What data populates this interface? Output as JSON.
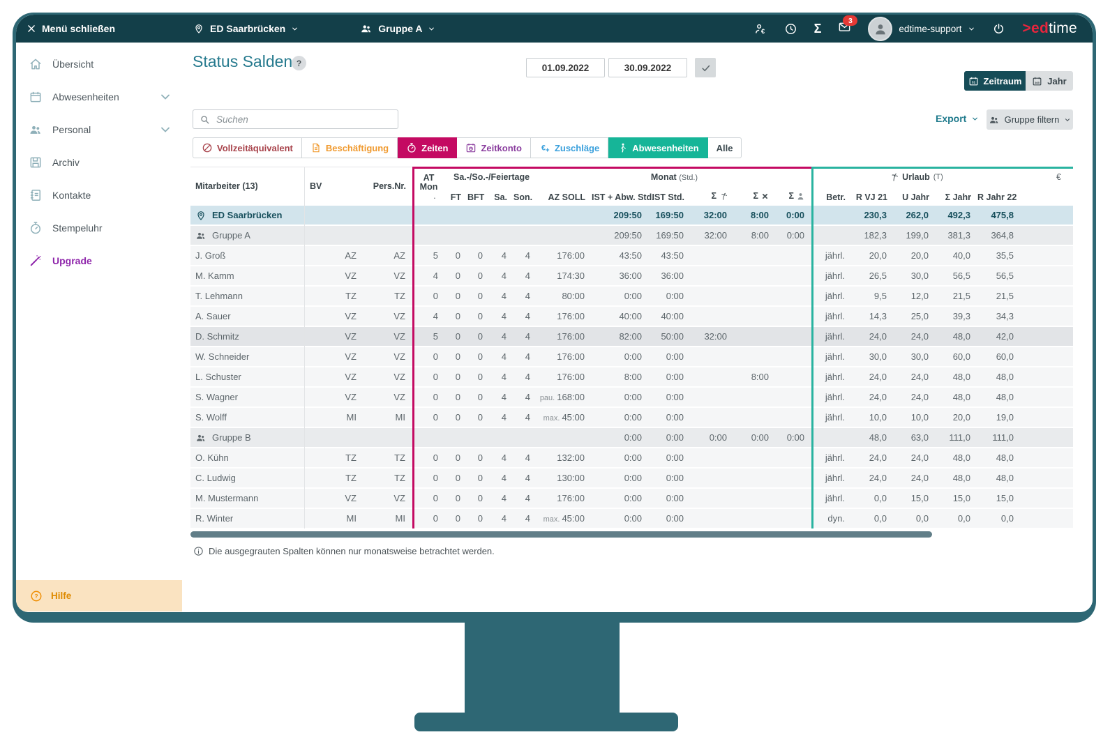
{
  "topbar": {
    "menu_close": "Menü schließen",
    "location": "ED Saarbrücken",
    "group": "Gruppe A",
    "mail_badge": "3",
    "user": "edtime-support",
    "logo_red": ">ed",
    "logo_light": "time"
  },
  "sidebar": {
    "items": [
      {
        "label": "Übersicht",
        "icon": "home-icon"
      },
      {
        "label": "Abwesenheiten",
        "icon": "calendar-icon",
        "chevron": true
      },
      {
        "label": "Personal",
        "icon": "people-icon",
        "chevron": true
      },
      {
        "label": "Archiv",
        "icon": "archive-icon"
      },
      {
        "label": "Kontakte",
        "icon": "contacts-icon"
      },
      {
        "label": "Stempeluhr",
        "icon": "stopwatch-icon"
      },
      {
        "label": "Upgrade",
        "icon": "wand-icon",
        "accent": true
      }
    ],
    "help_label": "Hilfe"
  },
  "header": {
    "title": "Status Salden",
    "help": "?",
    "date_from": "01.09.2022",
    "date_to": "30.09.2022",
    "zeitraum": "Zeitraum",
    "jahr": "Jahr"
  },
  "toolbar": {
    "search_placeholder": "Suchen",
    "export": "Export",
    "group_filter": "Gruppe filtern",
    "filters": [
      {
        "label": "Vollzeitäquivalent",
        "icon": "slash-circle-icon",
        "color": "#a8434b",
        "bg": "#ffffff"
      },
      {
        "label": "Beschäftigung",
        "icon": "document-icon",
        "color": "#f09a2f",
        "bg": "#ffffff"
      },
      {
        "label": "Zeiten",
        "icon": "stopwatch-icon",
        "color": "#ffffff",
        "bg": "#c40a62",
        "active": true
      },
      {
        "label": "Zeitkonto",
        "icon": "calendar-clock-icon",
        "color": "#8a3d9e",
        "bg": "#ffffff"
      },
      {
        "label": "Zuschläge",
        "icon": "euro-plus-icon",
        "color": "#3aa0dc",
        "bg": "#ffffff"
      },
      {
        "label": "Abwesenheiten",
        "icon": "absence-person-icon",
        "color": "#ffffff",
        "bg": "#16b598",
        "active": true
      },
      {
        "label": "Alle",
        "icon": null,
        "color": "#3c4a50",
        "bg": "#ffffff"
      }
    ]
  },
  "table": {
    "header": {
      "mitarbeiter": "Mitarbeiter (13)",
      "bv": "BV",
      "pers": "Pers.Nr.",
      "atmon_l1": "AT",
      "atmon_l2": "Mon",
      "atmon_dot": "·",
      "feiertage": "Sa.-/So.-/Feiertage",
      "ft": "FT",
      "bft": "BFT",
      "sa": "Sa.",
      "son": "Son.",
      "monat": "Monat",
      "monat_unit": "(Std.)",
      "az": "AZ SOLL",
      "ia": "IST + Abw. Std.",
      "ist": "IST Std.",
      "sigma": "Σ",
      "urlaub": "Urlaub",
      "urlaub_unit": "(T)",
      "betr": "Betr.",
      "c1": "R VJ 21",
      "c2": "U Jahr",
      "c3": "Σ Jahr",
      "c4": "R Jahr 22",
      "euro": "€"
    },
    "rows": [
      {
        "type": "location",
        "icon": "pin-icon",
        "name": "ED Saarbrücken",
        "ia": "209:50",
        "ist": "169:50",
        "s1": "32:00",
        "s2": "8:00",
        "s3": "0:00",
        "c1": "230,3",
        "c2": "262,0",
        "c3": "492,3",
        "c4": "475,8"
      },
      {
        "type": "group",
        "icon": "group-icon",
        "name": "Gruppe A",
        "ia": "209:50",
        "ist": "169:50",
        "s1": "32:00",
        "s2": "8:00",
        "s3": "0:00",
        "c1": "182,3",
        "c2": "199,0",
        "c3": "381,3",
        "c4": "364,8"
      },
      {
        "type": "employee",
        "name": "J. Groß",
        "bv": "AZ",
        "atmon": "5",
        "ft": "0",
        "bft": "0",
        "sa": "4",
        "son": "4",
        "az": "176:00",
        "ia": "43:50",
        "ist": "43:50",
        "betr": "jährl.",
        "c1": "20,0",
        "c2": "20,0",
        "c3": "40,0",
        "c4": "35,5"
      },
      {
        "type": "employee",
        "name": "M. Kamm",
        "bv": "VZ",
        "atmon": "4",
        "ft": "0",
        "bft": "0",
        "sa": "4",
        "son": "4",
        "az": "174:30",
        "ia": "36:00",
        "ist": "36:00",
        "betr": "jährl.",
        "c1": "26,5",
        "c2": "30,0",
        "c3": "56,5",
        "c4": "56,5"
      },
      {
        "type": "employee",
        "name": "T. Lehmann",
        "bv": "TZ",
        "atmon": "0",
        "ft": "0",
        "bft": "0",
        "sa": "4",
        "son": "4",
        "az": "80:00",
        "ia": "0:00",
        "ist": "0:00",
        "betr": "jährl.",
        "c1": "9,5",
        "c2": "12,0",
        "c3": "21,5",
        "c4": "21,5"
      },
      {
        "type": "employee",
        "name": "A. Sauer",
        "bv": "VZ",
        "atmon": "4",
        "ft": "0",
        "bft": "0",
        "sa": "4",
        "son": "4",
        "az": "176:00",
        "ia": "40:00",
        "ist": "40:00",
        "betr": "jährl.",
        "c1": "14,3",
        "c2": "25,0",
        "c3": "39,3",
        "c4": "34,3"
      },
      {
        "type": "employee",
        "selected": true,
        "name": "D. Schmitz",
        "bv": "VZ",
        "atmon": "5",
        "ft": "0",
        "bft": "0",
        "sa": "4",
        "son": "4",
        "az": "176:00",
        "ia": "82:00",
        "ist": "50:00",
        "s1": "32:00",
        "betr": "jährl.",
        "c1": "24,0",
        "c2": "24,0",
        "c3": "48,0",
        "c4": "42,0"
      },
      {
        "type": "employee",
        "name": "W. Schneider",
        "bv": "VZ",
        "atmon": "0",
        "ft": "0",
        "bft": "0",
        "sa": "4",
        "son": "4",
        "az": "176:00",
        "ia": "0:00",
        "ist": "0:00",
        "betr": "jährl.",
        "c1": "30,0",
        "c2": "30,0",
        "c3": "60,0",
        "c4": "60,0"
      },
      {
        "type": "employee",
        "name": "L. Schuster",
        "bv": "VZ",
        "atmon": "0",
        "ft": "0",
        "bft": "0",
        "sa": "4",
        "son": "4",
        "az": "176:00",
        "ia": "8:00",
        "ist": "0:00",
        "s2": "8:00",
        "betr": "jährl.",
        "c1": "24,0",
        "c2": "24,0",
        "c3": "48,0",
        "c4": "48,0"
      },
      {
        "type": "employee",
        "name": "S. Wagner",
        "bv": "VZ",
        "atmon": "0",
        "ft": "0",
        "bft": "0",
        "sa": "4",
        "son": "4",
        "azp": "pau.",
        "az": "168:00",
        "ia": "0:00",
        "ist": "0:00",
        "betr": "jährl.",
        "c1": "24,0",
        "c2": "24,0",
        "c3": "48,0",
        "c4": "48,0"
      },
      {
        "type": "employee",
        "name": "S. Wolff",
        "bv": "MI",
        "atmon": "0",
        "ft": "0",
        "bft": "0",
        "sa": "4",
        "son": "4",
        "azp": "max.",
        "az": "45:00",
        "ia": "0:00",
        "ist": "0:00",
        "betr": "jährl.",
        "c1": "10,0",
        "c2": "10,0",
        "c3": "20,0",
        "c4": "19,0"
      },
      {
        "type": "group",
        "icon": "group-icon",
        "name": "Gruppe B",
        "ia": "0:00",
        "ist": "0:00",
        "s1": "0:00",
        "s2": "0:00",
        "s3": "0:00",
        "c1": "48,0",
        "c2": "63,0",
        "c3": "111,0",
        "c4": "111,0"
      },
      {
        "type": "employee",
        "name": "O. Kühn",
        "bv": "TZ",
        "atmon": "0",
        "ft": "0",
        "bft": "0",
        "sa": "4",
        "son": "4",
        "az": "132:00",
        "ia": "0:00",
        "ist": "0:00",
        "betr": "jährl.",
        "c1": "24,0",
        "c2": "24,0",
        "c3": "48,0",
        "c4": "48,0"
      },
      {
        "type": "employee",
        "name": "C. Ludwig",
        "bv": "TZ",
        "atmon": "0",
        "ft": "0",
        "bft": "0",
        "sa": "4",
        "son": "4",
        "az": "130:00",
        "ia": "0:00",
        "ist": "0:00",
        "betr": "jährl.",
        "c1": "24,0",
        "c2": "24,0",
        "c3": "48,0",
        "c4": "48,0"
      },
      {
        "type": "employee",
        "name": "M. Mustermann",
        "bv": "VZ",
        "atmon": "0",
        "ft": "0",
        "bft": "0",
        "sa": "4",
        "son": "4",
        "az": "176:00",
        "ia": "0:00",
        "ist": "0:00",
        "betr": "jährl.",
        "c1": "0,0",
        "c2": "15,0",
        "c3": "15,0",
        "c4": "15,0"
      },
      {
        "type": "employee",
        "name": "R. Winter",
        "bv": "MI",
        "atmon": "0",
        "ft": "0",
        "bft": "0",
        "sa": "4",
        "son": "4",
        "azp": "max.",
        "az": "45:00",
        "ia": "0:00",
        "ist": "0:00",
        "betr": "dyn.",
        "c1": "0,0",
        "c2": "0,0",
        "c3": "0,0",
        "c4": "0,0"
      }
    ]
  },
  "footer": {
    "note": "Die ausgegrauten Spalten können nur monatsweise betrachtet werden."
  },
  "colors": {
    "frame": "#2e6774",
    "topbar": "#133f49",
    "accent_teal": "#1f7a8c",
    "magenta": "#c40a62",
    "green": "#16b598",
    "row_location": "#d2e4ec"
  }
}
